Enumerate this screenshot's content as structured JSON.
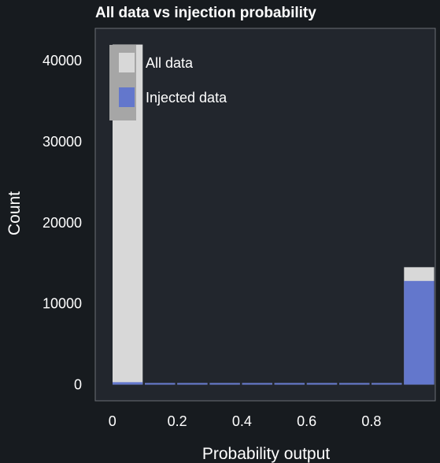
{
  "chart_data": {
    "type": "bar",
    "title": "All data vs injection probability",
    "xlabel": "Probability output",
    "ylabel": "Count",
    "xlim": [
      -0.05,
      1.0
    ],
    "ylim": [
      -2000,
      44000
    ],
    "xticks": [
      {
        "value": 0,
        "label": "0"
      },
      {
        "value": 0.2,
        "label": "0.2"
      },
      {
        "value": 0.4,
        "label": "0.4"
      },
      {
        "value": 0.6,
        "label": "0.6"
      },
      {
        "value": 0.8,
        "label": "0.8"
      }
    ],
    "yticks": [
      {
        "value": 0,
        "label": "0"
      },
      {
        "value": 10000,
        "label": "10000"
      },
      {
        "value": 20000,
        "label": "20000"
      },
      {
        "value": 30000,
        "label": "30000"
      },
      {
        "value": 40000,
        "label": "40000"
      }
    ],
    "bin_starts": [
      0.0,
      0.1,
      0.2,
      0.3,
      0.4,
      0.5,
      0.6,
      0.7,
      0.8,
      0.9
    ],
    "series": [
      {
        "name": "All data",
        "color": "#d8d8d8",
        "values": [
          42000,
          60,
          40,
          30,
          25,
          25,
          30,
          40,
          120,
          14500
        ]
      },
      {
        "name": "Injected data",
        "color": "#6377cc",
        "values": [
          300,
          40,
          30,
          20,
          20,
          20,
          20,
          30,
          80,
          12800
        ]
      }
    ],
    "grid": false,
    "legend": "top-left"
  },
  "colors": {
    "background": "#171b1f",
    "plot_background": "#22262d",
    "plot_border": "#6b6f75",
    "legend_background": "#a6a6a6"
  }
}
